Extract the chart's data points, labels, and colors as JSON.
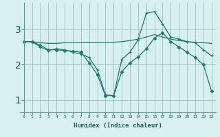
{
  "xlabel": "Humidex (Indice chaleur)",
  "ylabel": "",
  "bg_color": "#d8f0f0",
  "grid_color": "#a0c8c8",
  "line_color": "#1a7a6e",
  "xlim": [
    -0.5,
    23.5
  ],
  "ylim": [
    0.65,
    3.75
  ],
  "xticks": [
    0,
    1,
    2,
    3,
    4,
    5,
    6,
    7,
    8,
    9,
    10,
    11,
    12,
    13,
    14,
    15,
    16,
    17,
    18,
    19,
    20,
    21,
    22,
    23
  ],
  "yticks": [
    1,
    2,
    3
  ],
  "line1_x": [
    0,
    1,
    2,
    3,
    4,
    5,
    6,
    7,
    8,
    9,
    10,
    11,
    12,
    13,
    14,
    15,
    16,
    17,
    18,
    19,
    20,
    21,
    22,
    23
  ],
  "line1_y": [
    2.65,
    2.65,
    2.62,
    2.6,
    2.6,
    2.62,
    2.63,
    2.63,
    2.62,
    2.62,
    2.63,
    2.63,
    2.65,
    2.68,
    2.72,
    2.78,
    2.85,
    2.78,
    2.72,
    2.68,
    2.65,
    2.63,
    2.62,
    2.6
  ],
  "line2_x": [
    0,
    1,
    2,
    3,
    4,
    5,
    6,
    7,
    8,
    9,
    10,
    11,
    12,
    13,
    14,
    15,
    16,
    17,
    18,
    19,
    20,
    21,
    22,
    23
  ],
  "line2_y": [
    2.65,
    2.65,
    2.5,
    2.4,
    2.45,
    2.42,
    2.35,
    2.3,
    2.2,
    1.85,
    1.15,
    1.12,
    2.15,
    2.35,
    2.7,
    3.45,
    3.5,
    3.15,
    2.78,
    2.72,
    2.65,
    2.62,
    2.42,
    2.25
  ],
  "line3_x": [
    0,
    1,
    2,
    3,
    4,
    5,
    6,
    7,
    8,
    9,
    10,
    11,
    12,
    13,
    14,
    15,
    16,
    17,
    18,
    19,
    20,
    21,
    22,
    23
  ],
  "line3_y": [
    2.65,
    2.65,
    2.55,
    2.42,
    2.42,
    2.4,
    2.38,
    2.35,
    2.05,
    1.72,
    1.12,
    1.12,
    1.8,
    2.05,
    2.22,
    2.45,
    2.75,
    2.9,
    2.65,
    2.5,
    2.35,
    2.2,
    2.0,
    1.25
  ]
}
